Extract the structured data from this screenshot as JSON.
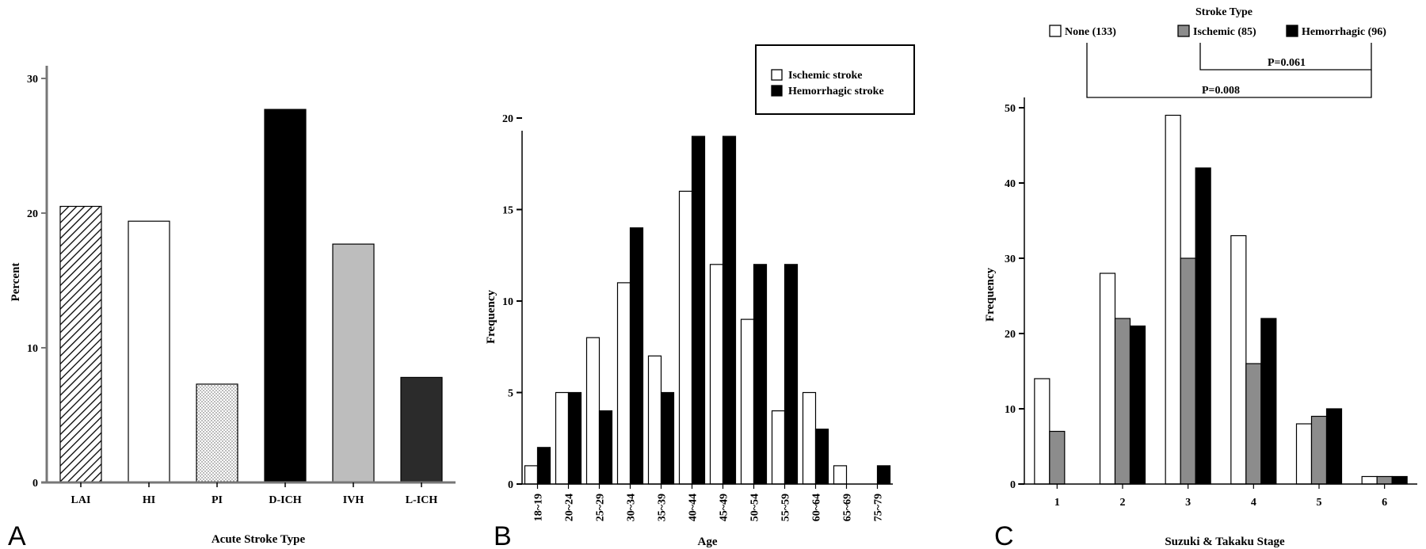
{
  "chart_data": [
    {
      "panel": "A",
      "type": "bar",
      "xlabel": "Acute Stroke Type",
      "ylabel": "Percent",
      "ylim": [
        0,
        30
      ],
      "yticks": [
        "0",
        "10",
        "20",
        "30"
      ],
      "categories": [
        "LAI",
        "HI",
        "PI",
        "D-ICH",
        "IVH",
        "L-ICH"
      ],
      "values": [
        20.5,
        19.4,
        7.3,
        27.7,
        17.7,
        7.8
      ],
      "grid": false
    },
    {
      "panel": "B",
      "type": "bar",
      "xlabel": "Age",
      "ylabel": "Frequency",
      "ylim": [
        0,
        20
      ],
      "yticks": [
        "0",
        "5",
        "10",
        "15",
        "20"
      ],
      "categories": [
        "18~19",
        "20~24",
        "25~29",
        "30~34",
        "35~39",
        "40~44",
        "45~49",
        "50~54",
        "55~59",
        "60~64",
        "65~69",
        "75~79"
      ],
      "series": [
        {
          "name": "Ischemic stroke",
          "color": "#ffffff",
          "values": [
            1,
            5,
            8,
            11,
            7,
            16,
            12,
            9,
            4,
            5,
            1,
            0
          ]
        },
        {
          "name": "Hemorrhagic stroke",
          "color": "#000000",
          "values": [
            2,
            5,
            4,
            14,
            5,
            19,
            19,
            12,
            12,
            3,
            0,
            1
          ]
        }
      ],
      "legend": "top-right",
      "grid": false
    },
    {
      "panel": "C",
      "type": "bar",
      "xlabel": "Suzuki & Takaku Stage",
      "ylabel": "Frequency",
      "ylim": [
        0,
        50
      ],
      "yticks": [
        "0",
        "10",
        "20",
        "30",
        "40",
        "50"
      ],
      "categories": [
        "1",
        "2",
        "3",
        "4",
        "5",
        "6"
      ],
      "legend_title": "Stroke Type",
      "series": [
        {
          "name": "None (133)",
          "color": "#ffffff",
          "values": [
            14,
            28,
            49,
            33,
            8,
            1
          ]
        },
        {
          "name": "Ischemic (85)",
          "color": "#8c8c8c",
          "values": [
            7,
            22,
            30,
            16,
            9,
            1
          ]
        },
        {
          "name": "Hemorrhagic (96)",
          "color": "#000000",
          "values": [
            0,
            21,
            42,
            22,
            10,
            1
          ]
        }
      ],
      "annotations": [
        "P=0.061",
        "P=0.008"
      ],
      "legend": "top",
      "grid": false
    }
  ]
}
